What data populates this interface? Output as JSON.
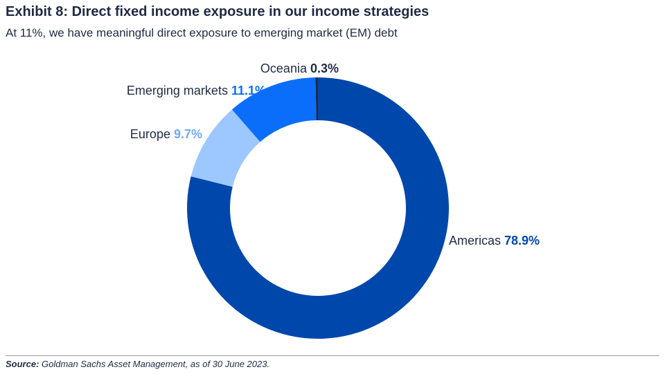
{
  "chart_data": {
    "type": "pie",
    "donut": true,
    "title": "Exhibit 8: Direct fixed income exposure in our income strategies",
    "subtitle": "At 11%, we have meaningful direct exposure to emerging market (EM) debt",
    "slices": [
      {
        "label": "Americas",
        "value": 78.9,
        "value_label": "78.9%",
        "color": "#0047AB",
        "label_color": "#0047AB"
      },
      {
        "label": "Europe",
        "value": 9.7,
        "value_label": "9.7%",
        "color": "#9DC7FF",
        "label_color": "#6FAAF7"
      },
      {
        "label": "Emerging markets",
        "value": 11.1,
        "value_label": "11.1%",
        "color": "#0A6EFA",
        "label_color": "#0A6EFA"
      },
      {
        "label": "Oceania",
        "value": 0.3,
        "value_label": "0.3%",
        "color": "#1F2A44",
        "label_color": "#1F2A44"
      }
    ]
  },
  "source": {
    "label": "Source:",
    "text": " Goldman Sachs Asset Management, as of 30 June 2023."
  }
}
